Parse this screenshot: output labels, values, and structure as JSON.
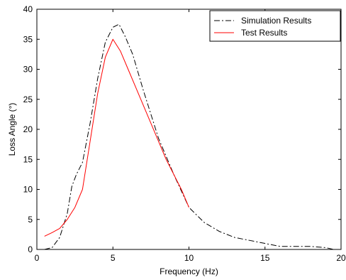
{
  "chart_data": {
    "type": "line",
    "title": "",
    "xlabel": "Frequency (Hz)",
    "ylabel": "Loss Angle (°)",
    "xlim": [
      0,
      20
    ],
    "ylim": [
      0,
      40
    ],
    "xticks": [
      0,
      5,
      10,
      15,
      20
    ],
    "yticks": [
      0,
      5,
      10,
      15,
      20,
      25,
      30,
      35,
      40
    ],
    "grid": false,
    "legend_position": "top-right",
    "series": [
      {
        "name": "Simulation Results",
        "color": "#000000",
        "style": "dash-dot",
        "x": [
          0.5,
          1.0,
          1.5,
          2.0,
          2.3,
          2.6,
          3.0,
          3.5,
          4.0,
          4.5,
          5.0,
          5.4,
          5.8,
          6.3,
          7.0,
          8.0,
          9.0,
          10.0,
          11.0,
          12.0,
          13.0,
          14.0,
          15.0,
          16.0,
          17.0,
          18.0,
          19.0,
          19.5
        ],
        "y": [
          0.0,
          0.3,
          2.0,
          6.0,
          10.5,
          12.5,
          14.5,
          21.0,
          28.5,
          34.5,
          37.0,
          37.5,
          35.5,
          32.5,
          26.5,
          18.5,
          12.5,
          7.0,
          4.5,
          3.0,
          2.0,
          1.5,
          1.0,
          0.5,
          0.5,
          0.5,
          0.3,
          0.0
        ]
      },
      {
        "name": "Test Results",
        "color": "#ff0000",
        "style": "solid",
        "x": [
          0.5,
          1.0,
          1.5,
          2.0,
          2.5,
          3.0,
          3.5,
          4.0,
          4.5,
          5.0,
          5.5,
          6.0,
          6.5,
          7.0,
          7.5,
          8.0,
          8.5,
          9.0,
          9.5,
          10.0
        ],
        "y": [
          2.2,
          2.8,
          3.5,
          5.0,
          7.0,
          10.0,
          18.0,
          26.0,
          32.0,
          35.0,
          33.0,
          30.0,
          27.0,
          24.0,
          21.0,
          18.0,
          15.0,
          12.5,
          10.0,
          7.0
        ]
      }
    ]
  }
}
